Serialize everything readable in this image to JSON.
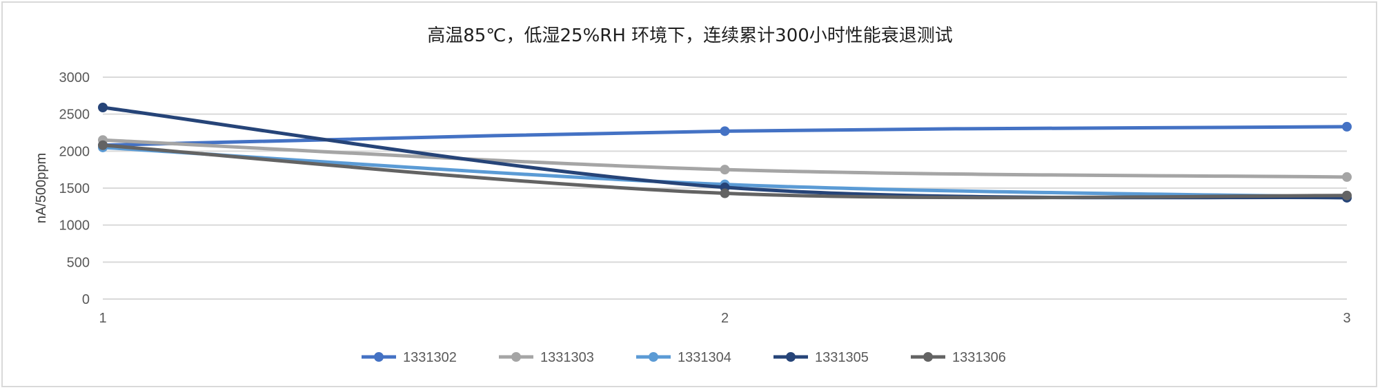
{
  "chart_data": {
    "type": "line",
    "title": "高温85℃，低湿25%RH 环境下，连续累计300小时性能衰退测试",
    "ylabel": "nA/500ppm",
    "xlabel": "",
    "x": [
      1,
      2,
      3
    ],
    "ylim": [
      0,
      3000
    ],
    "yticks": [
      0,
      500,
      1000,
      1500,
      2000,
      2500,
      3000
    ],
    "grid": true,
    "legend": "bottom",
    "series": [
      {
        "name": "1331302",
        "color": "#4472c4",
        "values": [
          2080,
          2270,
          2330
        ]
      },
      {
        "name": "1331303",
        "color": "#a5a5a5",
        "values": [
          2150,
          1750,
          1650
        ]
      },
      {
        "name": "1331304",
        "color": "#5b9bd5",
        "values": [
          2050,
          1550,
          1380
        ]
      },
      {
        "name": "1331305",
        "color": "#264478",
        "values": [
          2590,
          1510,
          1370
        ]
      },
      {
        "name": "1331306",
        "color": "#636363",
        "values": [
          2080,
          1430,
          1400
        ]
      }
    ]
  }
}
